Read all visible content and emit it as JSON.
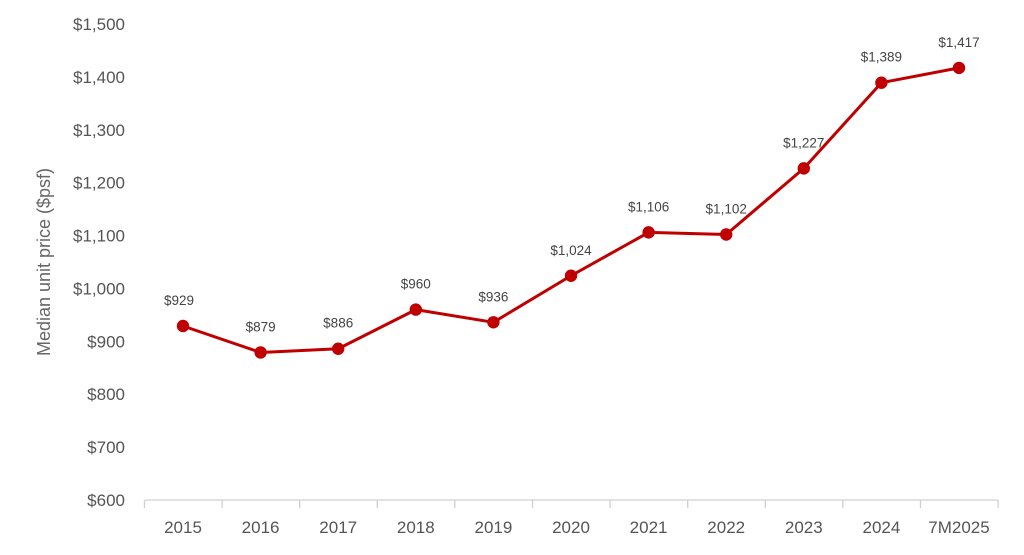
{
  "chart_data": {
    "type": "line",
    "title": "",
    "xlabel": "",
    "ylabel": "Median unit price ($psf)",
    "categories": [
      "2015",
      "2016",
      "2017",
      "2018",
      "2019",
      "2020",
      "2021",
      "2022",
      "2023",
      "2024",
      "7M2025"
    ],
    "series": [
      {
        "values": [
          929,
          879,
          886,
          960,
          936,
          1024,
          1106,
          1102,
          1227,
          1389,
          1417
        ],
        "data_labels": [
          "$929",
          "$879",
          "$886",
          "$960",
          "$936",
          "$1,024",
          "$1,106",
          "$1,102",
          "$1,227",
          "$1,389",
          "$1,417"
        ],
        "color": "#c00000"
      }
    ],
    "ylim": [
      600,
      1500
    ],
    "yticks": [
      600,
      700,
      800,
      900,
      1000,
      1100,
      1200,
      1300,
      1400,
      1500
    ],
    "ytick_labels": [
      "$600",
      "$700",
      "$800",
      "$900",
      "$1,000",
      "$1,100",
      "$1,200",
      "$1,300",
      "$1,400",
      "$1,500"
    ],
    "grid": false,
    "legend": "none",
    "axis_color": "#d0d0d0"
  }
}
